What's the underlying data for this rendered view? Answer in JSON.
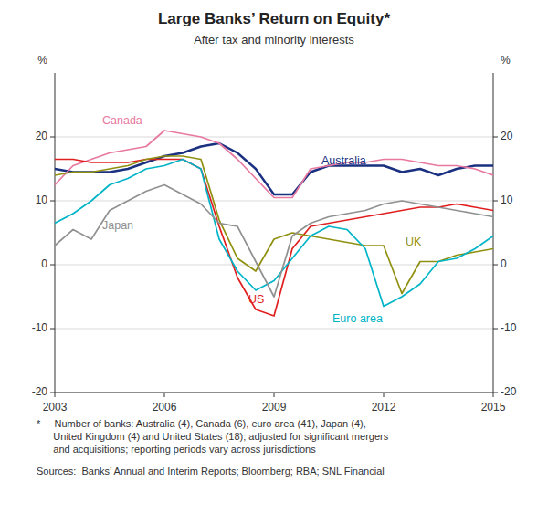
{
  "chart_data": {
    "type": "line",
    "title": "Large Banks’ Return on Equity*",
    "subtitle": "After tax and minority interests",
    "y_label": "%",
    "y2_label": "%",
    "x": [
      2003.0,
      2003.5,
      2004.0,
      2004.5,
      2005.0,
      2005.5,
      2006.0,
      2006.5,
      2007.0,
      2007.5,
      2008.0,
      2008.5,
      2009.0,
      2009.5,
      2010.0,
      2010.5,
      2011.0,
      2011.5,
      2012.0,
      2012.5,
      2013.0,
      2013.5,
      2014.0,
      2014.5,
      2015.0
    ],
    "xlim": [
      2003,
      2015
    ],
    "xticks": [
      2003,
      2006,
      2009,
      2012,
      2015
    ],
    "ylim": [
      -20,
      30
    ],
    "yticks": [
      -20,
      -10,
      0,
      10,
      20
    ],
    "y2lim": [
      -20,
      30
    ],
    "y2ticks": [
      -20,
      -10,
      0,
      10,
      20
    ],
    "grid": true,
    "series": [
      {
        "name": "Australia",
        "color": "#1a3080",
        "values": [
          15.0,
          14.5,
          14.5,
          14.5,
          15.0,
          16.0,
          17.0,
          17.5,
          18.5,
          19.0,
          17.5,
          15.0,
          11.0,
          11.0,
          14.5,
          15.5,
          15.5,
          15.5,
          15.5,
          14.5,
          15.0,
          14.0,
          15.0,
          15.5,
          15.5
        ]
      },
      {
        "name": "Canada",
        "color": "#e878a0",
        "values": [
          12.5,
          15.5,
          16.5,
          17.5,
          18.0,
          18.5,
          21.0,
          20.5,
          20.0,
          19.0,
          16.5,
          13.5,
          10.5,
          10.5,
          15.0,
          15.5,
          16.0,
          16.0,
          16.5,
          16.5,
          16.0,
          15.5,
          15.5,
          15.0,
          14.0
        ]
      },
      {
        "name": "US",
        "color": "#e02020",
        "values": [
          16.5,
          16.5,
          16.0,
          16.0,
          16.0,
          16.5,
          16.5,
          16.5,
          15.0,
          6.0,
          -2.0,
          -7.0,
          -8.0,
          2.5,
          6.0,
          6.5,
          7.0,
          7.5,
          8.0,
          8.5,
          9.0,
          9.0,
          9.5,
          9.0,
          8.5
        ]
      },
      {
        "name": "UK",
        "color": "#909010",
        "values": [
          14.0,
          14.5,
          14.5,
          15.0,
          15.5,
          16.5,
          17.0,
          17.0,
          16.5,
          7.0,
          1.0,
          -1.0,
          4.0,
          5.0,
          4.5,
          4.0,
          3.5,
          3.0,
          3.0,
          -4.5,
          0.5,
          0.5,
          1.5,
          2.0,
          2.5
        ]
      },
      {
        "name": "Euro area",
        "color": "#00b4c8",
        "values": [
          6.5,
          8.0,
          10.0,
          12.5,
          13.5,
          15.0,
          15.5,
          16.5,
          15.0,
          4.0,
          -1.0,
          -4.0,
          -2.5,
          1.0,
          4.5,
          6.0,
          5.5,
          2.5,
          -6.5,
          -5.0,
          -3.0,
          0.5,
          1.0,
          2.5,
          4.5
        ]
      },
      {
        "name": "Japan",
        "color": "#909090",
        "values": [
          3.0,
          5.5,
          4.0,
          8.5,
          10.0,
          11.5,
          12.5,
          11.0,
          9.5,
          6.5,
          6.0,
          0.5,
          -5.0,
          4.5,
          6.5,
          7.5,
          8.0,
          8.5,
          9.5,
          10.0,
          9.5,
          9.0,
          8.5,
          8.0,
          7.5
        ]
      }
    ],
    "annotations": [
      {
        "text": "Australia",
        "x": 2010.3,
        "y": 16.2,
        "color": "#1a3080"
      },
      {
        "text": "Canada",
        "x": 2004.3,
        "y": 22.5,
        "color": "#e878a0"
      },
      {
        "text": "US",
        "x": 2008.3,
        "y": -5.5,
        "color": "#e02020"
      },
      {
        "text": "UK",
        "x": 2012.6,
        "y": 3.5,
        "color": "#909010"
      },
      {
        "text": "Euro area",
        "x": 2010.6,
        "y": -8.5,
        "color": "#00b4c8"
      },
      {
        "text": "Japan",
        "x": 2004.3,
        "y": 6.0,
        "color": "#909090"
      }
    ],
    "footnotes": [
      "*     Number of banks: Australia (4), Canada (6), euro area (41), Japan (4),\n      United Kingdom (4) and United States (18); adjusted for significant mergers\n      and acquisitions; reporting periods vary across jurisdictions",
      "Sources:  Banks’ Annual and Interim Reports; Bloomberg; RBA; SNL Financial"
    ]
  }
}
